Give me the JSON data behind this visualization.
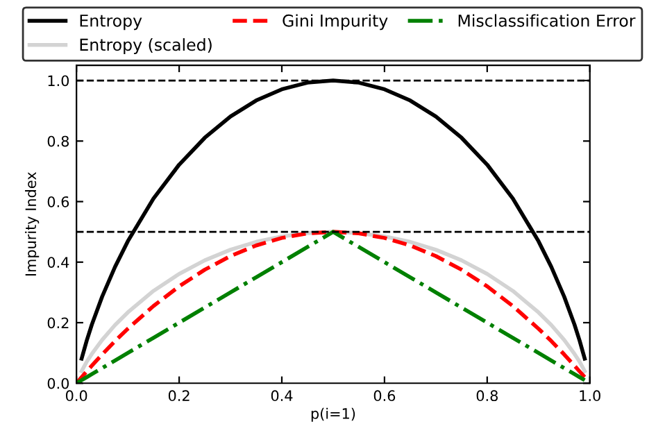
{
  "chart_data": {
    "type": "line",
    "xlabel": "p(i=1)",
    "ylabel": "Impurity Index",
    "x": [
      0,
      0.01,
      0.02,
      0.03,
      0.05,
      0.075,
      0.1,
      0.15,
      0.2,
      0.25,
      0.3,
      0.35,
      0.4,
      0.45,
      0.5,
      0.55,
      0.6,
      0.65,
      0.7,
      0.75,
      0.8,
      0.85,
      0.9,
      0.925,
      0.95,
      0.97,
      0.98,
      0.99
    ],
    "series": [
      {
        "name": "Entropy",
        "color": "#000000",
        "line_style": "solid",
        "values": [
          null,
          0.081,
          0.141,
          0.194,
          0.286,
          0.384,
          0.469,
          0.61,
          0.722,
          0.811,
          0.881,
          0.934,
          0.971,
          0.993,
          1.0,
          0.993,
          0.971,
          0.934,
          0.881,
          0.811,
          0.722,
          0.61,
          0.469,
          0.384,
          0.286,
          0.194,
          0.141,
          0.081
        ]
      },
      {
        "name": "Entropy (scaled)",
        "color": "#d3d3d3",
        "line_style": "solid",
        "values": [
          null,
          0.04,
          0.071,
          0.097,
          0.143,
          0.192,
          0.234,
          0.305,
          0.361,
          0.406,
          0.441,
          0.467,
          0.485,
          0.496,
          0.5,
          0.496,
          0.485,
          0.467,
          0.441,
          0.406,
          0.361,
          0.305,
          0.234,
          0.192,
          0.143,
          0.097,
          0.071,
          0.04
        ]
      },
      {
        "name": "Gini Impurity",
        "color": "#ff0000",
        "line_style": "dashed",
        "values": [
          0,
          0.02,
          0.039,
          0.058,
          0.095,
          0.139,
          0.18,
          0.255,
          0.32,
          0.375,
          0.42,
          0.455,
          0.48,
          0.495,
          0.5,
          0.495,
          0.48,
          0.455,
          0.42,
          0.375,
          0.32,
          0.255,
          0.18,
          0.139,
          0.095,
          0.058,
          0.039,
          0.02
        ]
      },
      {
        "name": "Misclassification Error",
        "color": "#008000",
        "line_style": "dashdot",
        "values": [
          0,
          0.01,
          0.02,
          0.03,
          0.05,
          0.075,
          0.1,
          0.15,
          0.2,
          0.25,
          0.3,
          0.35,
          0.4,
          0.45,
          0.5,
          0.45,
          0.4,
          0.35,
          0.3,
          0.25,
          0.2,
          0.15,
          0.1,
          0.075,
          0.05,
          0.03,
          0.02,
          0.01
        ]
      }
    ],
    "xlim": [
      0,
      1
    ],
    "ylim": [
      0,
      1.05
    ],
    "xticks": [
      {
        "value": 0,
        "label": "0.0"
      },
      0.2,
      0.4,
      0.6,
      0.8,
      {
        "value": 1,
        "label": "1.0"
      }
    ],
    "yticks": [
      {
        "value": 0,
        "label": "0.0"
      },
      0.2,
      0.4,
      0.6,
      0.8,
      {
        "value": 1,
        "label": "1.0"
      }
    ],
    "ref_lines": [
      {
        "axis": "y",
        "value": 0.5,
        "color": "#000000",
        "line_style": "dashed"
      },
      {
        "axis": "y",
        "value": 1.0,
        "color": "#000000",
        "line_style": "dashed"
      }
    ],
    "grid": false,
    "legend": "top",
    "marker": "none"
  }
}
